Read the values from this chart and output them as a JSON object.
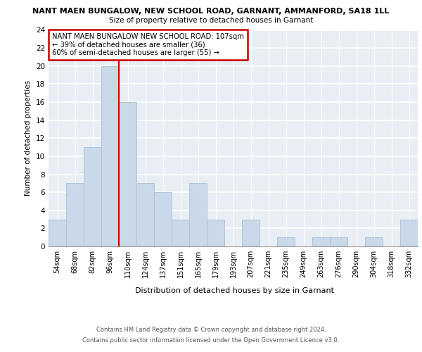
{
  "title_line1": "NANT MAEN BUNGALOW, NEW SCHOOL ROAD, GARNANT, AMMANFORD, SA18 1LL",
  "title_line2": "Size of property relative to detached houses in Garnant",
  "xlabel": "Distribution of detached houses by size in Garnant",
  "ylabel": "Number of detached properties",
  "bin_labels": [
    "54sqm",
    "68sqm",
    "82sqm",
    "96sqm",
    "110sqm",
    "124sqm",
    "137sqm",
    "151sqm",
    "165sqm",
    "179sqm",
    "193sqm",
    "207sqm",
    "221sqm",
    "235sqm",
    "249sqm",
    "263sqm",
    "276sqm",
    "290sqm",
    "304sqm",
    "318sqm",
    "332sqm"
  ],
  "bar_heights": [
    3,
    7,
    11,
    20,
    16,
    7,
    6,
    3,
    7,
    3,
    0,
    3,
    0,
    1,
    0,
    1,
    1,
    0,
    1,
    0,
    3
  ],
  "bar_color": "#c9d9e9",
  "bar_edge_color": "#a8c0d8",
  "vline_color": "#cc0000",
  "annotation_line1": "NANT MAEN BUNGALOW NEW SCHOOL ROAD: 107sqm",
  "annotation_line2": "← 39% of detached houses are smaller (36)",
  "annotation_line3": "60% of semi-detached houses are larger (55) →",
  "annotation_box_color": "#ffffff",
  "annotation_box_edge_color": "#cc0000",
  "ylim": [
    0,
    24
  ],
  "yticks": [
    0,
    2,
    4,
    6,
    8,
    10,
    12,
    14,
    16,
    18,
    20,
    22,
    24
  ],
  "footnote1": "Contains HM Land Registry data © Crown copyright and database right 2024.",
  "footnote2": "Contains public sector information licensed under the Open Government Licence v3.0.",
  "bg_color": "#e8eef4",
  "grid_color": "#ffffff",
  "fig_bg": "#ffffff"
}
